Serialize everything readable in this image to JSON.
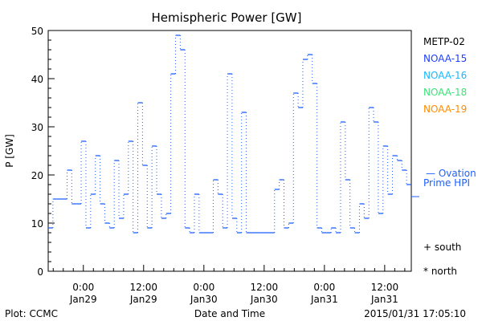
{
  "chart_data": {
    "type": "line",
    "title": "Hemispheric Power [GW]",
    "xlabel": "Date and Time",
    "ylabel": "P [GW]",
    "ylim": [
      0,
      50
    ],
    "xlim_hours_from_jan29": [
      -7,
      65.3
    ],
    "yticks": [
      "0",
      "10",
      "20",
      "30",
      "40",
      "50"
    ],
    "xticks": [
      {
        "hour": 0,
        "time": "0:00",
        "date": "Jan29"
      },
      {
        "hour": 12,
        "time": "12:00",
        "date": "Jan29"
      },
      {
        "hour": 24,
        "time": "0:00",
        "date": "Jan30"
      },
      {
        "hour": 36,
        "time": "12:00",
        "date": "Jan30"
      },
      {
        "hour": 48,
        "time": "0:00",
        "date": "Jan31"
      },
      {
        "hour": 60,
        "time": "12:00",
        "date": "Jan31"
      }
    ],
    "series": [
      {
        "name": "Ovation Prime HPI",
        "color": "#1f5fff",
        "values": [
          9,
          15,
          15,
          15,
          21,
          14,
          14,
          27,
          9,
          16,
          24,
          14,
          10,
          9,
          23,
          11,
          16,
          27,
          8,
          35,
          22,
          9,
          26,
          16,
          11,
          12,
          41,
          49,
          46,
          9,
          8,
          16,
          8,
          8,
          8,
          19,
          16,
          9,
          41,
          11,
          8,
          33,
          8,
          8,
          8,
          8,
          8,
          8,
          17,
          19,
          9,
          10,
          37,
          34,
          44,
          45,
          39,
          9,
          8,
          8,
          9,
          8,
          31,
          19,
          9,
          8,
          14,
          11,
          34,
          31,
          12,
          26,
          16,
          24,
          23,
          21,
          18
        ]
      }
    ],
    "legend": {
      "position": "right",
      "satellites": [
        {
          "label": "METP-02",
          "color": "#000000"
        },
        {
          "label": "NOAA-15",
          "color": "#1f3fff"
        },
        {
          "label": "NOAA-16",
          "color": "#19b8ff"
        },
        {
          "label": "NOAA-18",
          "color": "#3de27a"
        },
        {
          "label": "NOAA-19",
          "color": "#ff8c00"
        }
      ],
      "model_line1": "— Ovation",
      "model_line2": "Prime HPI",
      "south": "+ south",
      "north": "* north"
    }
  },
  "footer": {
    "plot_credit": "Plot: CCMC",
    "timestamp": "2015/01/31  17:05:10"
  }
}
